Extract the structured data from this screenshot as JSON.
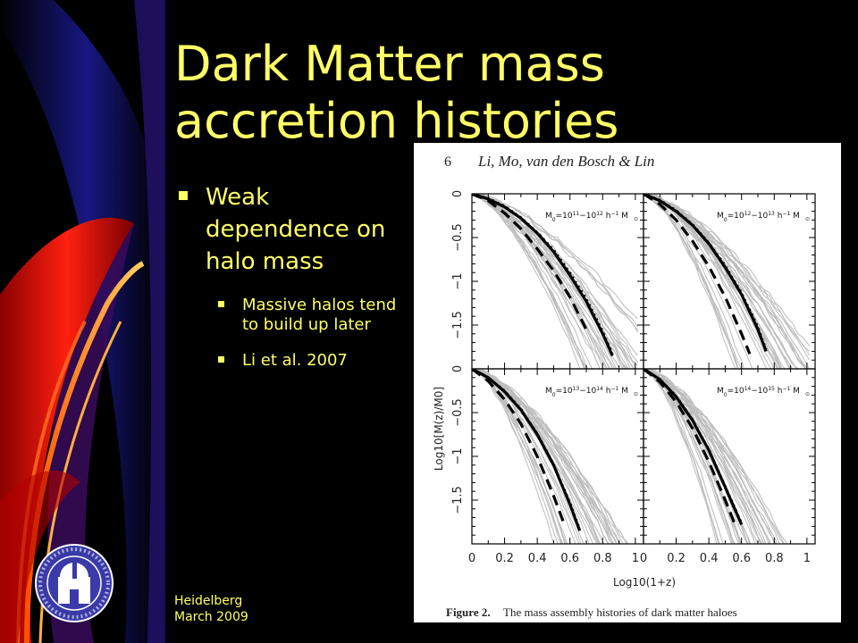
{
  "slide": {
    "title": "Dark Matter mass accretion histories",
    "bullets": [
      {
        "text": "Weak dependence on halo mass",
        "level": 1
      },
      {
        "text": "Massive halos tend to build up later",
        "level": 2
      },
      {
        "text": "Li et al. 2007",
        "level": 2
      }
    ],
    "footer_line1": "Heidelberg",
    "footer_line2": "March 2009",
    "logo_icon": "institute-seal-icon"
  },
  "colors": {
    "title": "#ffff66",
    "background": "#000000",
    "accent_red": "#e0100f",
    "accent_blue": "#1a1aa0"
  },
  "figure": {
    "page_number": "6",
    "header_authors": "Li, Mo, van den Bosch & Lin",
    "caption_bold": "Figure 2.",
    "caption_text": "The mass assembly histories of dark matter haloes",
    "x_axis_label": "Log10(1+z)",
    "y_axis_label": "Log10[M(z)/M0]",
    "y_ticks": [
      "0",
      "−0.5",
      "−1",
      "−1.5"
    ],
    "x_ticks": [
      "0",
      "0.2",
      "0.4",
      "0.6",
      "0.8",
      "1"
    ]
  },
  "chart_data": [
    {
      "type": "line",
      "panel": "top-left",
      "label": "M0=10^11−10^12 h^-1 M⊙",
      "xlim": [
        0,
        1.05
      ],
      "ylim": [
        -2,
        0
      ],
      "series": [
        {
          "style": "solid",
          "x": [
            0,
            0.1,
            0.2,
            0.3,
            0.4,
            0.5,
            0.6,
            0.7,
            0.8,
            0.86
          ],
          "y": [
            0,
            -0.06,
            -0.15,
            -0.28,
            -0.45,
            -0.66,
            -0.93,
            -1.23,
            -1.6,
            -1.85
          ]
        },
        {
          "style": "dotted",
          "x": [
            0,
            0.1,
            0.2,
            0.3,
            0.4,
            0.5,
            0.6,
            0.7,
            0.8,
            0.86
          ],
          "y": [
            0,
            -0.05,
            -0.14,
            -0.27,
            -0.44,
            -0.64,
            -0.9,
            -1.2,
            -1.57,
            -1.83
          ]
        },
        {
          "style": "dashed",
          "x": [
            0,
            0.1,
            0.2,
            0.3,
            0.4,
            0.5,
            0.6,
            0.7
          ],
          "y": [
            0,
            -0.08,
            -0.22,
            -0.4,
            -0.63,
            -0.88,
            -1.18,
            -1.55
          ]
        }
      ]
    },
    {
      "type": "line",
      "panel": "top-right",
      "label": "M0=10^12−10^13 h^-1 M⊙",
      "xlim": [
        0,
        1.05
      ],
      "ylim": [
        -2,
        0
      ],
      "series": [
        {
          "style": "solid",
          "x": [
            0,
            0.1,
            0.2,
            0.3,
            0.4,
            0.5,
            0.6,
            0.7,
            0.75
          ],
          "y": [
            0,
            -0.08,
            -0.2,
            -0.36,
            -0.57,
            -0.84,
            -1.15,
            -1.55,
            -1.8
          ]
        },
        {
          "style": "dotted",
          "x": [
            0,
            0.1,
            0.2,
            0.3,
            0.4,
            0.5,
            0.6,
            0.7,
            0.75
          ],
          "y": [
            0,
            -0.07,
            -0.19,
            -0.35,
            -0.56,
            -0.82,
            -1.13,
            -1.52,
            -1.78
          ]
        },
        {
          "style": "dashed",
          "x": [
            0,
            0.1,
            0.2,
            0.3,
            0.4,
            0.5,
            0.6,
            0.65
          ],
          "y": [
            0,
            -0.12,
            -0.3,
            -0.54,
            -0.83,
            -1.18,
            -1.6,
            -1.83
          ]
        }
      ]
    },
    {
      "type": "line",
      "panel": "bottom-left",
      "label": "M0=10^13−10^14 h^-1 M⊙",
      "xlim": [
        0,
        1.05
      ],
      "ylim": [
        -2,
        0
      ],
      "series": [
        {
          "style": "solid",
          "x": [
            0,
            0.1,
            0.2,
            0.3,
            0.4,
            0.5,
            0.6,
            0.66
          ],
          "y": [
            0,
            -0.1,
            -0.26,
            -0.47,
            -0.75,
            -1.1,
            -1.55,
            -1.85
          ]
        },
        {
          "style": "dotted",
          "x": [
            0,
            0.1,
            0.2,
            0.3,
            0.4,
            0.5,
            0.6,
            0.66
          ],
          "y": [
            0,
            -0.1,
            -0.25,
            -0.46,
            -0.74,
            -1.09,
            -1.53,
            -1.83
          ]
        },
        {
          "style": "dashed",
          "x": [
            0,
            0.1,
            0.2,
            0.3,
            0.4,
            0.5,
            0.57
          ],
          "y": [
            0,
            -0.14,
            -0.35,
            -0.63,
            -1.0,
            -1.45,
            -1.8
          ]
        }
      ]
    },
    {
      "type": "line",
      "panel": "bottom-right",
      "label": "M0=10^14−10^15 h^-1 M⊙",
      "xlim": [
        0,
        1.05
      ],
      "ylim": [
        -2,
        0
      ],
      "series": [
        {
          "style": "solid",
          "x": [
            0,
            0.1,
            0.2,
            0.3,
            0.4,
            0.5,
            0.6
          ],
          "y": [
            0,
            -0.12,
            -0.32,
            -0.59,
            -0.93,
            -1.35,
            -1.78
          ]
        },
        {
          "style": "dotted",
          "x": [
            0,
            0.1,
            0.2,
            0.3,
            0.4,
            0.5,
            0.6
          ],
          "y": [
            0,
            -0.12,
            -0.31,
            -0.58,
            -0.92,
            -1.34,
            -1.76
          ]
        },
        {
          "style": "dashed",
          "x": [
            0,
            0.1,
            0.2,
            0.3,
            0.4,
            0.5,
            0.56
          ],
          "y": [
            0,
            -0.15,
            -0.38,
            -0.68,
            -1.06,
            -1.5,
            -1.78
          ]
        }
      ]
    }
  ]
}
